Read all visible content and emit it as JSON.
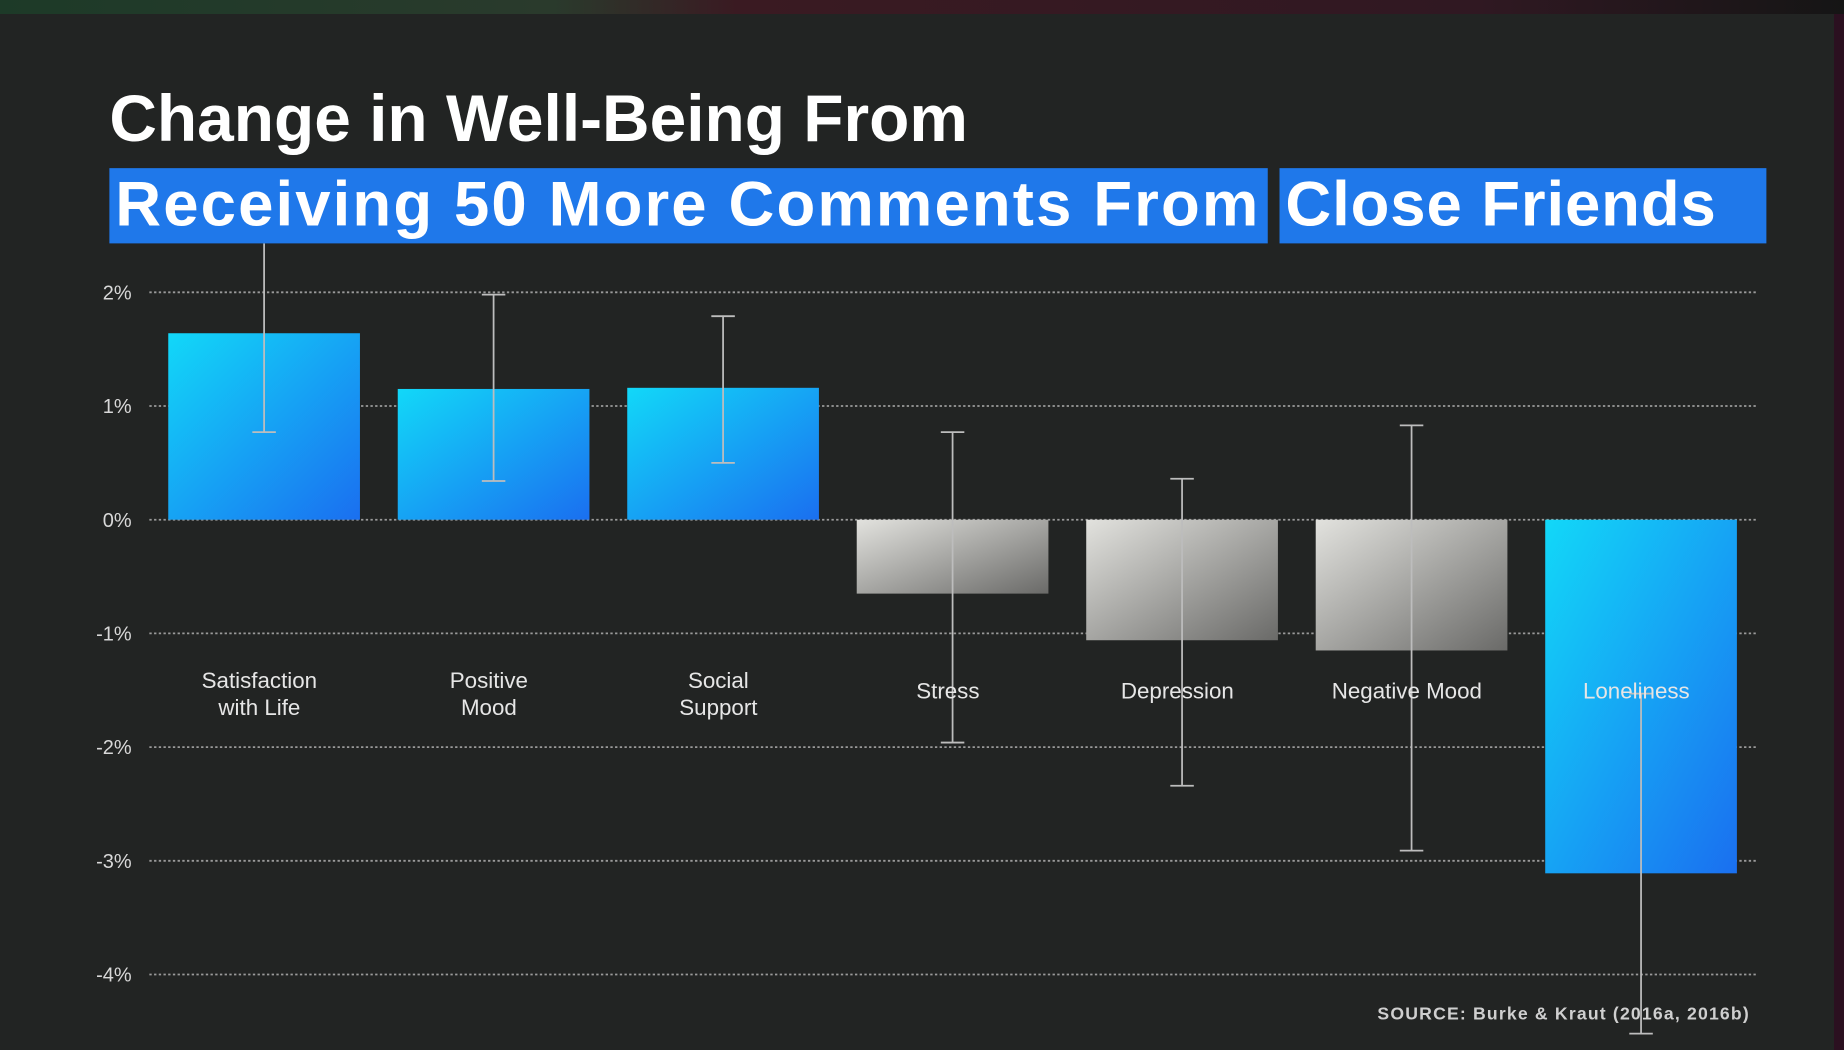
{
  "chart_data": {
    "type": "bar",
    "title": "Change in Well-Being From",
    "subtitle_parts": [
      "Receiving 50 More Comments From",
      "Close Friends"
    ],
    "xlabel": "",
    "ylabel": "",
    "ylim": [
      -4,
      2
    ],
    "yticks": [
      2,
      1,
      0,
      -1,
      -2,
      -3,
      -4
    ],
    "ytick_labels": [
      "2%",
      "1%",
      "0%",
      "-1%",
      "-2%",
      "-3%",
      "-4%"
    ],
    "grid": true,
    "categories": [
      [
        "Satisfaction",
        "with Life"
      ],
      [
        "Positive",
        "Mood"
      ],
      [
        "Social",
        "Support"
      ],
      [
        "Stress"
      ],
      [
        "Depression"
      ],
      [
        "Negative Mood"
      ],
      [
        "Loneliness"
      ]
    ],
    "values": [
      1.64,
      1.15,
      1.16,
      -0.65,
      -1.06,
      -1.15,
      -3.11
    ],
    "error_low": [
      0.77,
      0.34,
      0.5,
      -1.96,
      -2.34,
      -2.91,
      -4.52
    ],
    "error_high": [
      2.5,
      1.98,
      1.79,
      0.77,
      0.36,
      0.83,
      -1.53
    ],
    "bar_style": [
      "blue",
      "blue",
      "blue",
      "gray",
      "gray",
      "gray",
      "blue"
    ],
    "source": "SOURCE: Burke & Kraut (2016a, 2016b)",
    "colors": {
      "blue_top": "#12d8f8",
      "blue_bottom": "#1a7ff0",
      "gray_top": "#e0e0dc",
      "gray_bottom": "#6e6e6c",
      "highlight": "#1f78ea",
      "background": "#222423"
    }
  }
}
